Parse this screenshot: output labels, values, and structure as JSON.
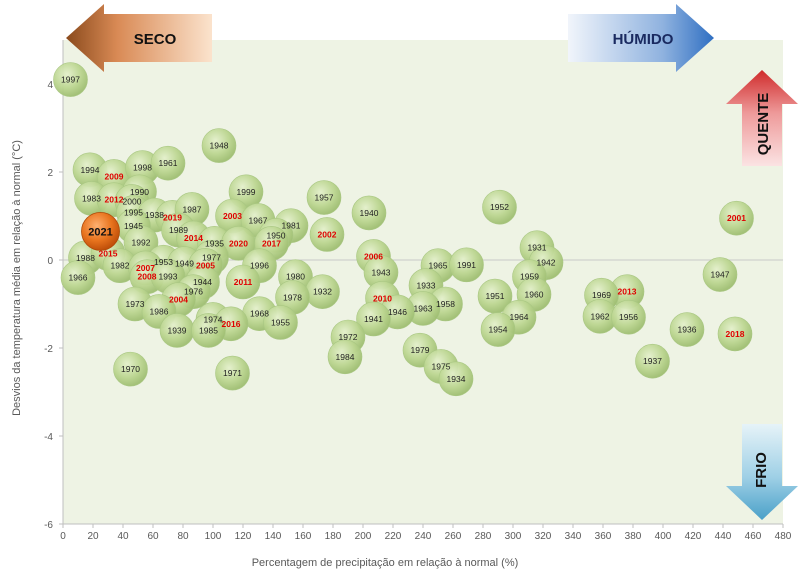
{
  "chart_data": {
    "type": "scatter",
    "xlabel": "Percentagem de precipitação em relação à normal (%)",
    "ylabel": "Desvios da temperatura média em relação à normal  (°C)",
    "xlim": [
      0,
      480
    ],
    "ylim": [
      -6,
      5
    ],
    "x_ticks": [
      "0",
      "20",
      "40",
      "60",
      "80",
      "100",
      "120",
      "140",
      "160",
      "180",
      "200",
      "220",
      "240",
      "260",
      "280",
      "300",
      "320",
      "340",
      "360",
      "380",
      "400",
      "420",
      "440",
      "460",
      "480"
    ],
    "y_ticks": [
      "4",
      "2",
      "0",
      "-2",
      "-4",
      "-6"
    ],
    "grid": false,
    "quadrant_labels": {
      "dry": "SECO",
      "wet": "HÚMIDO",
      "hot": "QUENTE",
      "cold": "FRIO"
    },
    "colors": {
      "bubble": "#bcd691",
      "recent_label": "#e00000",
      "old_label": "#222222",
      "highlight": "#e06010",
      "plot_bg": "#eef3e4"
    },
    "highlight_year": "2021",
    "points": [
      {
        "year": "1997",
        "x": 5,
        "y": 4.1
      },
      {
        "year": "1994",
        "x": 18,
        "y": 2.05
      },
      {
        "year": "2009",
        "x": 34,
        "y": 1.9
      },
      {
        "year": "1998",
        "x": 53,
        "y": 2.1
      },
      {
        "year": "1961",
        "x": 70,
        "y": 2.2
      },
      {
        "year": "1948",
        "x": 104,
        "y": 2.6
      },
      {
        "year": "1983",
        "x": 19,
        "y": 1.4
      },
      {
        "year": "2012",
        "x": 34,
        "y": 1.37
      },
      {
        "year": "1990",
        "x": 51,
        "y": 1.55
      },
      {
        "year": "2000",
        "x": 46,
        "y": 1.33
      },
      {
        "year": "1995",
        "x": 47,
        "y": 1.08
      },
      {
        "year": "1938",
        "x": 61,
        "y": 1.02
      },
      {
        "year": "2019",
        "x": 73,
        "y": 0.97
      },
      {
        "year": "1987",
        "x": 86,
        "y": 1.15
      },
      {
        "year": "1999",
        "x": 122,
        "y": 1.55
      },
      {
        "year": "1957",
        "x": 174,
        "y": 1.42
      },
      {
        "year": "1940",
        "x": 204,
        "y": 1.07
      },
      {
        "year": "1952",
        "x": 291,
        "y": 1.2
      },
      {
        "year": "2001",
        "x": 449,
        "y": 0.95
      },
      {
        "year": "1945",
        "x": 47,
        "y": 0.77
      },
      {
        "year": "1989",
        "x": 77,
        "y": 0.68
      },
      {
        "year": "2003",
        "x": 113,
        "y": 1.0
      },
      {
        "year": "1967",
        "x": 130,
        "y": 0.9
      },
      {
        "year": "1981",
        "x": 152,
        "y": 0.78
      },
      {
        "year": "2002",
        "x": 176,
        "y": 0.58
      },
      {
        "year": "2021",
        "x": 25,
        "y": 0.65
      },
      {
        "year": "1992",
        "x": 52,
        "y": 0.4
      },
      {
        "year": "2014",
        "x": 87,
        "y": 0.5
      },
      {
        "year": "1935",
        "x": 101,
        "y": 0.38
      },
      {
        "year": "2020",
        "x": 117,
        "y": 0.38
      },
      {
        "year": "1950",
        "x": 142,
        "y": 0.56
      },
      {
        "year": "2017",
        "x": 139,
        "y": 0.38
      },
      {
        "year": "1931",
        "x": 316,
        "y": 0.28
      },
      {
        "year": "1988",
        "x": 15,
        "y": 0.05
      },
      {
        "year": "2015",
        "x": 30,
        "y": 0.15
      },
      {
        "year": "1977",
        "x": 99,
        "y": 0.06
      },
      {
        "year": "1942",
        "x": 322,
        "y": -0.06
      },
      {
        "year": "1982",
        "x": 38,
        "y": -0.13
      },
      {
        "year": "1953",
        "x": 67,
        "y": -0.05
      },
      {
        "year": "1949",
        "x": 81,
        "y": -0.08
      },
      {
        "year": "2005",
        "x": 95,
        "y": -0.12
      },
      {
        "year": "1996",
        "x": 131,
        "y": -0.13
      },
      {
        "year": "2006",
        "x": 207,
        "y": 0.08
      },
      {
        "year": "1965",
        "x": 250,
        "y": -0.13
      },
      {
        "year": "1991",
        "x": 269,
        "y": -0.11
      },
      {
        "year": "2007",
        "x": 55,
        "y": -0.18
      },
      {
        "year": "1966",
        "x": 10,
        "y": -0.4
      },
      {
        "year": "2008",
        "x": 56,
        "y": -0.38
      },
      {
        "year": "1993",
        "x": 70,
        "y": -0.37
      },
      {
        "year": "1943",
        "x": 212,
        "y": -0.28
      },
      {
        "year": "1980",
        "x": 155,
        "y": -0.38
      },
      {
        "year": "1944",
        "x": 93,
        "y": -0.5
      },
      {
        "year": "2011",
        "x": 120,
        "y": -0.5
      },
      {
        "year": "1959",
        "x": 311,
        "y": -0.38
      },
      {
        "year": "1947",
        "x": 438,
        "y": -0.33
      },
      {
        "year": "1933",
        "x": 242,
        "y": -0.58
      },
      {
        "year": "1932",
        "x": 173,
        "y": -0.72
      },
      {
        "year": "1976",
        "x": 87,
        "y": -0.72
      },
      {
        "year": "1978",
        "x": 153,
        "y": -0.85
      },
      {
        "year": "2013",
        "x": 376,
        "y": -0.72
      },
      {
        "year": "1951",
        "x": 288,
        "y": -0.82
      },
      {
        "year": "1960",
        "x": 314,
        "y": -0.78
      },
      {
        "year": "1969",
        "x": 359,
        "y": -0.8
      },
      {
        "year": "2004",
        "x": 77,
        "y": -0.9
      },
      {
        "year": "2010",
        "x": 213,
        "y": -0.87
      },
      {
        "year": "1958",
        "x": 255,
        "y": -1.0
      },
      {
        "year": "1973",
        "x": 48,
        "y": -1.0
      },
      {
        "year": "1963",
        "x": 240,
        "y": -1.1
      },
      {
        "year": "1946",
        "x": 223,
        "y": -1.18
      },
      {
        "year": "1986",
        "x": 64,
        "y": -1.17
      },
      {
        "year": "1941",
        "x": 207,
        "y": -1.34
      },
      {
        "year": "1968",
        "x": 131,
        "y": -1.22
      },
      {
        "year": "1962",
        "x": 358,
        "y": -1.28
      },
      {
        "year": "1956",
        "x": 377,
        "y": -1.3
      },
      {
        "year": "1964",
        "x": 304,
        "y": -1.3
      },
      {
        "year": "1974",
        "x": 100,
        "y": -1.35
      },
      {
        "year": "1955",
        "x": 145,
        "y": -1.42
      },
      {
        "year": "2016",
        "x": 112,
        "y": -1.45
      },
      {
        "year": "1954",
        "x": 290,
        "y": -1.58
      },
      {
        "year": "1939",
        "x": 76,
        "y": -1.6
      },
      {
        "year": "1985",
        "x": 97,
        "y": -1.6
      },
      {
        "year": "1936",
        "x": 416,
        "y": -1.58
      },
      {
        "year": "2018",
        "x": 448,
        "y": -1.68
      },
      {
        "year": "1972",
        "x": 190,
        "y": -1.75
      },
      {
        "year": "1979",
        "x": 238,
        "y": -2.05
      },
      {
        "year": "1984",
        "x": 188,
        "y": -2.2
      },
      {
        "year": "1937",
        "x": 393,
        "y": -2.3
      },
      {
        "year": "1975",
        "x": 252,
        "y": -2.42
      },
      {
        "year": "1970",
        "x": 45,
        "y": -2.48
      },
      {
        "year": "1971",
        "x": 113,
        "y": -2.57
      },
      {
        "year": "1934",
        "x": 262,
        "y": -2.7
      }
    ]
  }
}
